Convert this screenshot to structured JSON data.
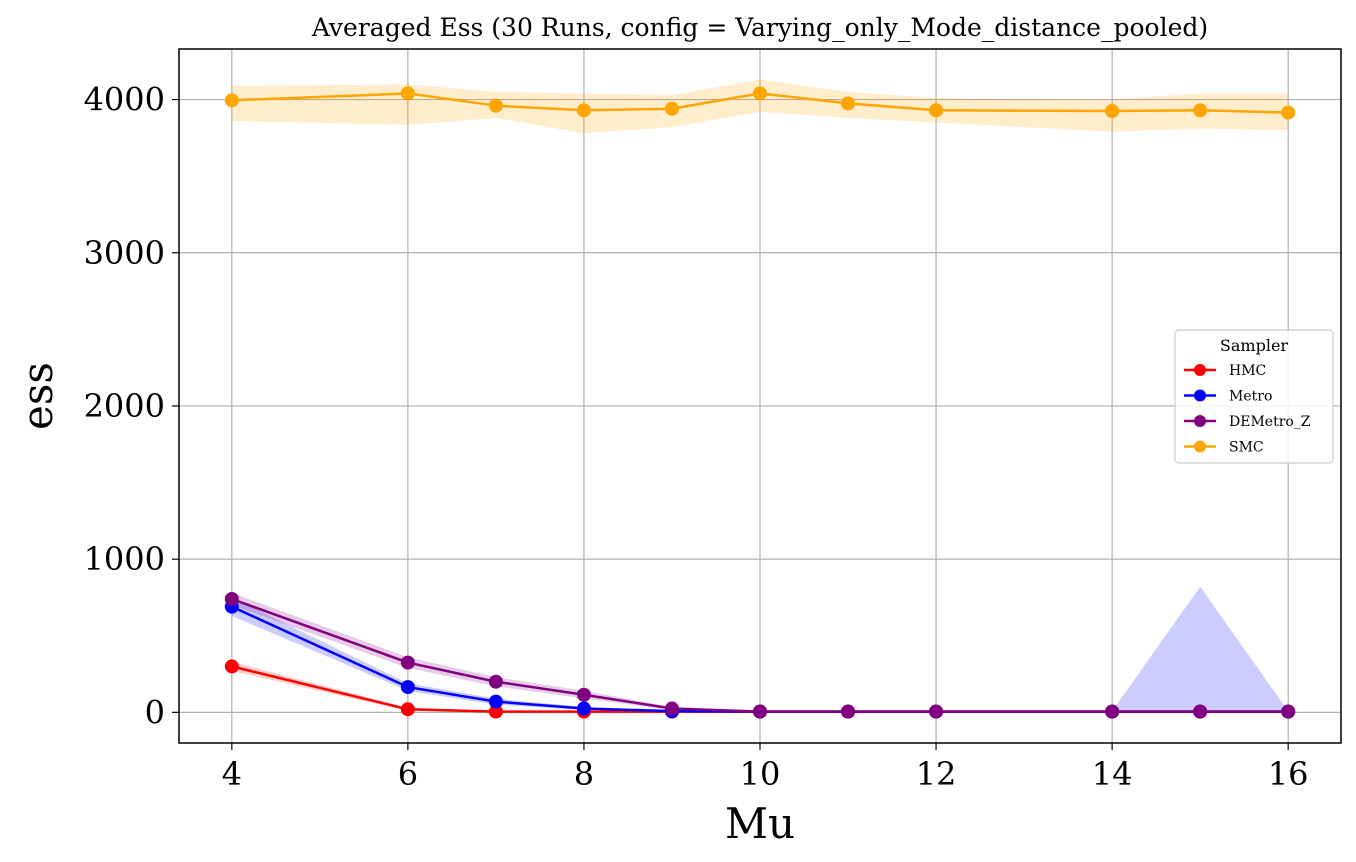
{
  "chart_data": {
    "type": "line",
    "title": "Averaged Ess (30 Runs, config = Varying_only_Mode_distance_pooled)",
    "xlabel": "Mu",
    "ylabel": "ess",
    "x": [
      4,
      6,
      7,
      8,
      9,
      10,
      11,
      12,
      14,
      15,
      16
    ],
    "xticks": [
      4,
      6,
      8,
      10,
      12,
      14,
      16
    ],
    "yticks": [
      0,
      1000,
      2000,
      3000,
      4000
    ],
    "xlim": [
      3.4,
      16.6
    ],
    "ylim": [
      -200,
      4330
    ],
    "grid": true,
    "legend": {
      "title": "Sampler",
      "placement": "center-right"
    },
    "series": [
      {
        "name": "HMC",
        "color": "#ff0000",
        "values": [
          300,
          20,
          5,
          5,
          5,
          5,
          5,
          5,
          5,
          5,
          5
        ],
        "lower": [
          270,
          10,
          2,
          2,
          2,
          2,
          2,
          2,
          2,
          2,
          2
        ],
        "upper": [
          330,
          30,
          8,
          8,
          8,
          8,
          8,
          8,
          8,
          8,
          8
        ]
      },
      {
        "name": "Metro",
        "color": "#0000ff",
        "values": [
          690,
          165,
          70,
          25,
          8,
          5,
          5,
          5,
          5,
          5,
          5
        ],
        "lower": [
          630,
          140,
          50,
          15,
          3,
          2,
          2,
          2,
          2,
          2,
          2
        ],
        "upper": [
          750,
          190,
          90,
          35,
          13,
          8,
          8,
          8,
          8,
          820,
          8
        ]
      },
      {
        "name": "DEMetro_Z",
        "color": "#800080",
        "values": [
          740,
          325,
          200,
          115,
          25,
          5,
          5,
          5,
          5,
          5,
          5
        ],
        "lower": [
          700,
          290,
          170,
          90,
          15,
          2,
          2,
          2,
          2,
          2,
          2
        ],
        "upper": [
          780,
          360,
          230,
          140,
          35,
          8,
          8,
          8,
          8,
          8,
          8
        ]
      },
      {
        "name": "SMC",
        "color": "#ffa500",
        "values": [
          3995,
          4040,
          3960,
          3930,
          3940,
          4040,
          3975,
          3930,
          3925,
          3930,
          3915
        ],
        "lower": [
          3860,
          3835,
          3880,
          3780,
          3820,
          3920,
          3880,
          3850,
          3790,
          3810,
          3800
        ],
        "upper": [
          4090,
          4100,
          4050,
          4040,
          4030,
          4130,
          4050,
          4010,
          4000,
          4040,
          4040
        ]
      }
    ]
  }
}
